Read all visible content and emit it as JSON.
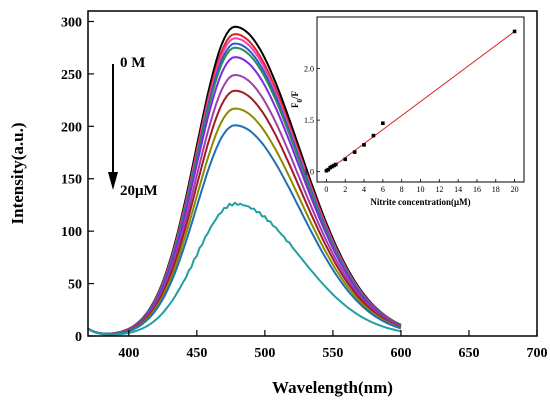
{
  "chart_data": [
    {
      "type": "line",
      "title": "",
      "xlabel": "Wavelength(nm)",
      "ylabel": "Intensity(a.u.)",
      "xlim": [
        370,
        700
      ],
      "ylim": [
        0,
        310
      ],
      "xticks": [
        400,
        450,
        500,
        550,
        600,
        650,
        700
      ],
      "yticks": [
        0,
        50,
        100,
        150,
        200,
        250,
        300
      ],
      "grid": false,
      "peak_wavelength": 478,
      "annotations": {
        "top": "0 M",
        "bottom": "20μM"
      },
      "series": [
        {
          "color": "#000000",
          "peak": 295
        },
        {
          "color": "#d62728",
          "peak": 288
        },
        {
          "color": "#ff3ea5",
          "peak": 284
        },
        {
          "color": "#1f5fd6",
          "peak": 279
        },
        {
          "color": "#2e8b57",
          "peak": 275
        },
        {
          "color": "#7b2be2",
          "peak": 266
        },
        {
          "color": "#a23ea8",
          "peak": 249
        },
        {
          "color": "#9e1b2a",
          "peak": 234
        },
        {
          "color": "#8b8b00",
          "peak": 217
        },
        {
          "color": "#1f6fb5",
          "peak": 201
        },
        {
          "color": "#22a0a0",
          "peak": 126
        }
      ]
    },
    {
      "type": "scatter",
      "title": "",
      "xlabel": "Nitrite concentration(μM)",
      "ylabel": "F0/F",
      "ylabel_main": "F",
      "ylabel_sub": "0",
      "ylabel_tail": "/F",
      "xlim": [
        -1,
        21
      ],
      "ylim": [
        0.9,
        2.5
      ],
      "xticks": [
        0,
        2,
        4,
        6,
        8,
        10,
        12,
        14,
        16,
        18,
        20
      ],
      "yticks": [
        1.0,
        1.5,
        2.0
      ],
      "ytick_labels": [
        "1.0",
        "1.5",
        "2.0"
      ],
      "fit_line": {
        "x": [
          0,
          20
        ],
        "y": [
          1.0,
          2.36
        ],
        "color": "#d62728"
      },
      "points": {
        "x": [
          0,
          0.2,
          0.4,
          0.6,
          0.8,
          1.0,
          2.0,
          3.0,
          4.0,
          5.0,
          6.0,
          20.0
        ],
        "y": [
          1.01,
          1.02,
          1.04,
          1.05,
          1.06,
          1.07,
          1.12,
          1.19,
          1.26,
          1.35,
          1.47,
          2.36
        ]
      }
    }
  ]
}
